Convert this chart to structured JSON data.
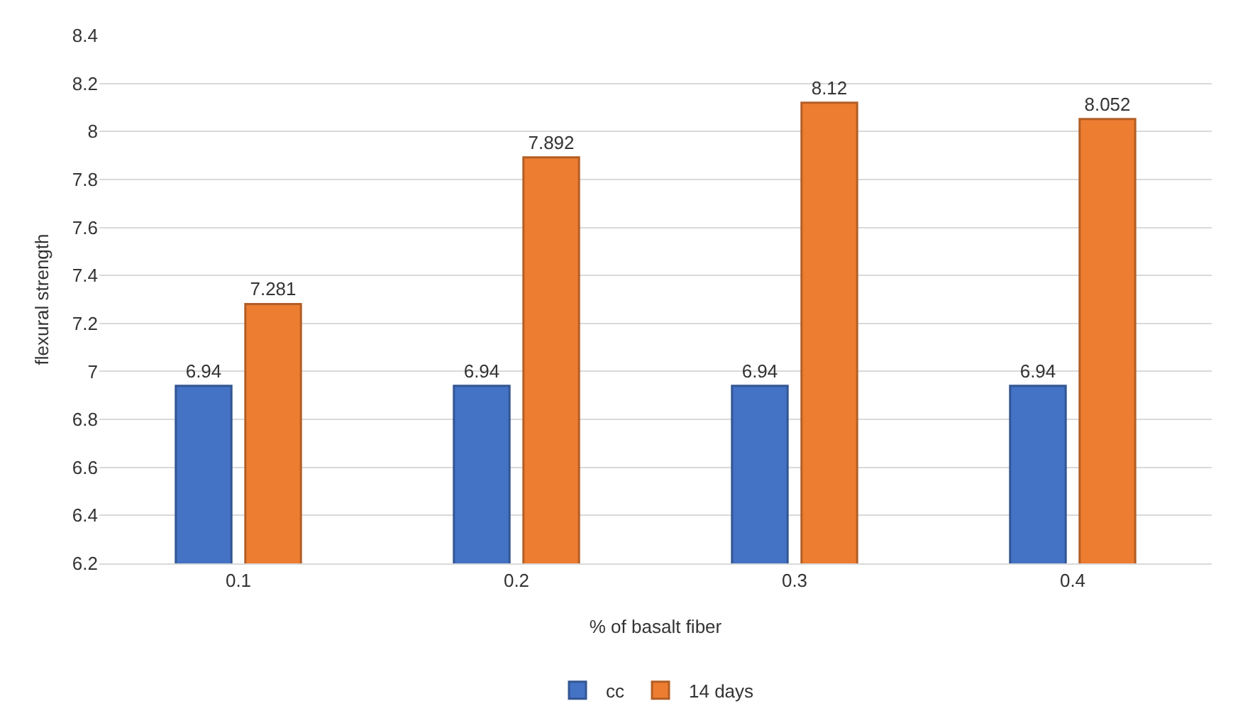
{
  "chart_data": {
    "type": "bar",
    "xlabel": "% of basalt fiber",
    "ylabel": "flexural strength",
    "categories": [
      "0.1",
      "0.2",
      "0.3",
      "0.4"
    ],
    "series": [
      {
        "name": "cc",
        "color": "#4472c4",
        "values": [
          6.94,
          6.94,
          6.94,
          6.94
        ]
      },
      {
        "name": "14 days",
        "color": "#ed7d31",
        "values": [
          7.281,
          7.892,
          8.12,
          8.052
        ]
      }
    ],
    "ylim": [
      6.2,
      8.4
    ],
    "yticks": [
      6.2,
      6.4,
      6.6,
      6.8,
      7,
      7.2,
      7.4,
      7.6,
      7.8,
      8,
      8.2,
      8.4
    ],
    "grid": "y",
    "legend": "bottom",
    "data_labels": true
  }
}
